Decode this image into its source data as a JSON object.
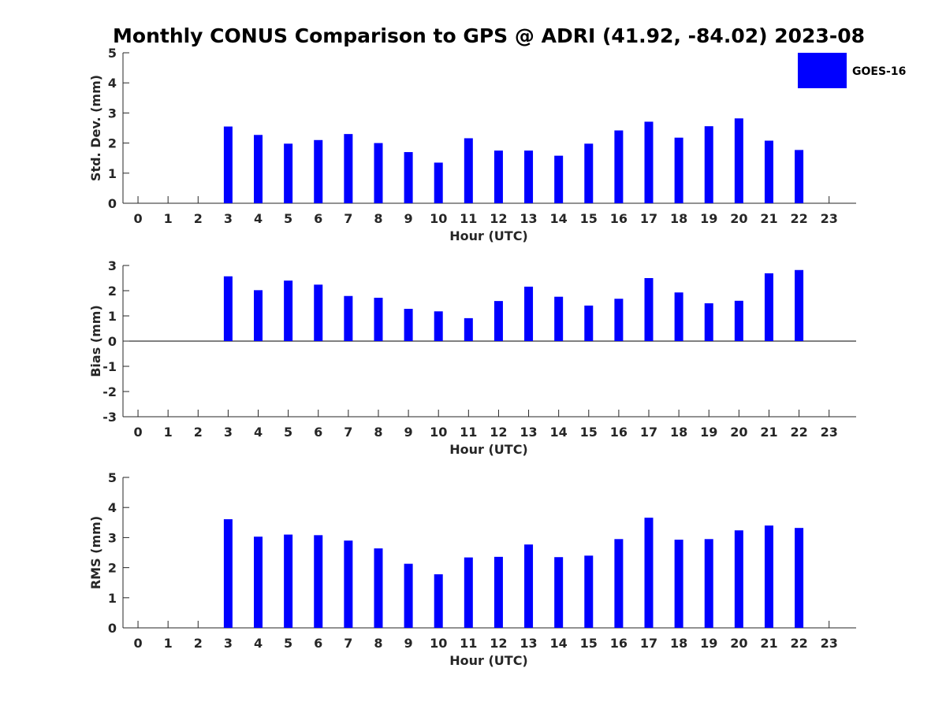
{
  "title": "Monthly CONUS Comparison to GPS @ ADRI (41.92, -84.02) 2023-08",
  "legend": {
    "label": "GOES-16",
    "color": "#0000ff",
    "placement": "top-right"
  },
  "chart_data": [
    {
      "type": "bar",
      "ylabel": "Std. Dev. (mm)",
      "xlabel": "Hour (UTC)",
      "x": [
        0,
        1,
        2,
        3,
        4,
        5,
        6,
        7,
        8,
        9,
        10,
        11,
        12,
        13,
        14,
        15,
        16,
        17,
        18,
        19,
        20,
        21,
        22,
        23
      ],
      "xlim": [
        -0.5,
        23.9
      ],
      "ylim": [
        0,
        5
      ],
      "yticks": [
        0,
        1,
        2,
        3,
        4,
        5
      ],
      "series": [
        {
          "name": "GOES-16",
          "values": [
            null,
            null,
            null,
            2.55,
            2.27,
            1.98,
            2.1,
            2.3,
            2.0,
            1.7,
            1.35,
            2.16,
            1.75,
            1.75,
            1.58,
            1.98,
            2.42,
            2.71,
            2.18,
            2.56,
            2.82,
            2.08,
            1.77,
            null
          ]
        }
      ]
    },
    {
      "type": "bar",
      "ylabel": "Bias (mm)",
      "xlabel": "Hour (UTC)",
      "x": [
        0,
        1,
        2,
        3,
        4,
        5,
        6,
        7,
        8,
        9,
        10,
        11,
        12,
        13,
        14,
        15,
        16,
        17,
        18,
        19,
        20,
        21,
        22,
        23
      ],
      "xlim": [
        -0.5,
        23.9
      ],
      "ylim": [
        -3,
        3
      ],
      "yticks": [
        -3,
        -2,
        -1,
        0,
        1,
        2,
        3
      ],
      "series": [
        {
          "name": "GOES-16",
          "values": [
            null,
            null,
            null,
            2.57,
            2.02,
            2.4,
            2.24,
            1.79,
            1.72,
            1.28,
            1.18,
            0.91,
            1.59,
            2.16,
            1.76,
            1.41,
            1.68,
            2.5,
            1.93,
            1.5,
            1.6,
            2.69,
            2.82,
            null
          ]
        }
      ]
    },
    {
      "type": "bar",
      "ylabel": "RMS (mm)",
      "xlabel": "Hour (UTC)",
      "x": [
        0,
        1,
        2,
        3,
        4,
        5,
        6,
        7,
        8,
        9,
        10,
        11,
        12,
        13,
        14,
        15,
        16,
        17,
        18,
        19,
        20,
        21,
        22,
        23
      ],
      "xlim": [
        -0.5,
        23.9
      ],
      "ylim": [
        0,
        5
      ],
      "yticks": [
        0,
        1,
        2,
        3,
        4,
        5
      ],
      "series": [
        {
          "name": "GOES-16",
          "values": [
            null,
            null,
            null,
            3.61,
            3.03,
            3.1,
            3.08,
            2.9,
            2.64,
            2.13,
            1.78,
            2.34,
            2.36,
            2.77,
            2.35,
            2.4,
            2.95,
            3.66,
            2.93,
            2.95,
            3.24,
            3.4,
            3.32,
            null
          ]
        }
      ]
    }
  ]
}
